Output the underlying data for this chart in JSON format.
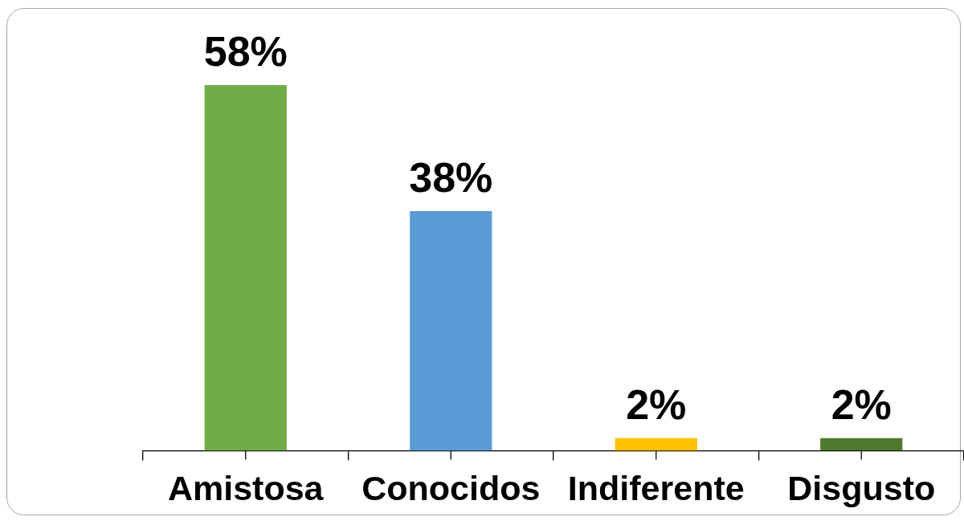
{
  "chart_data": {
    "type": "bar",
    "categories": [
      "Amistosa",
      "Conocidos",
      "Indiferente",
      "Disgusto"
    ],
    "values": [
      58,
      38,
      2,
      2
    ],
    "colors": [
      "#70ad47",
      "#5b9bd5",
      "#ffc000",
      "#4f7a2e"
    ],
    "value_labels": [
      "58%",
      "38%",
      "2%",
      "2%"
    ],
    "grid": false,
    "tick_labels": "x",
    "legend": false
  }
}
